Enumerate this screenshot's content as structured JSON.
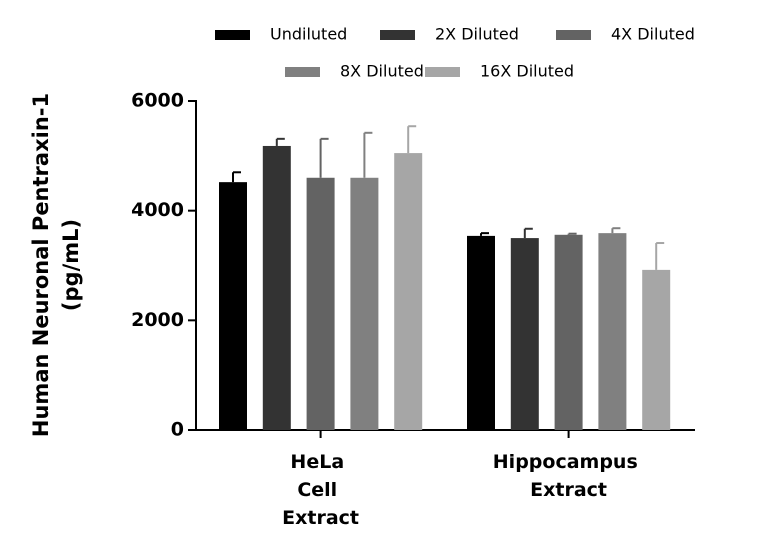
{
  "chart_data": {
    "type": "bar",
    "y_label": [
      "Human Neuronal Pentraxin-1",
      "(pg/mL)"
    ],
    "categories": [
      "HeLa Cell Extract",
      "Hippocampus Extract"
    ],
    "series": [
      {
        "name": "Undiluted",
        "color": "#000000",
        "values": [
          4520,
          3540
        ],
        "errors": [
          180,
          50
        ]
      },
      {
        "name": "2X Diluted",
        "color": "#333333",
        "values": [
          5180,
          3500
        ],
        "errors": [
          130,
          170
        ]
      },
      {
        "name": "4X Diluted",
        "color": "#636363",
        "values": [
          4600,
          3560
        ],
        "errors": [
          710,
          20
        ]
      },
      {
        "name": "8X Diluted",
        "color": "#808080",
        "values": [
          4600,
          3590
        ],
        "errors": [
          820,
          90
        ]
      },
      {
        "name": "16X Diluted",
        "color": "#a6a6a6",
        "values": [
          5050,
          2920
        ],
        "errors": [
          490,
          490
        ]
      }
    ],
    "ylim": [
      0,
      6000
    ],
    "yticks": [
      0,
      2000,
      4000,
      6000
    ],
    "grid": false
  }
}
